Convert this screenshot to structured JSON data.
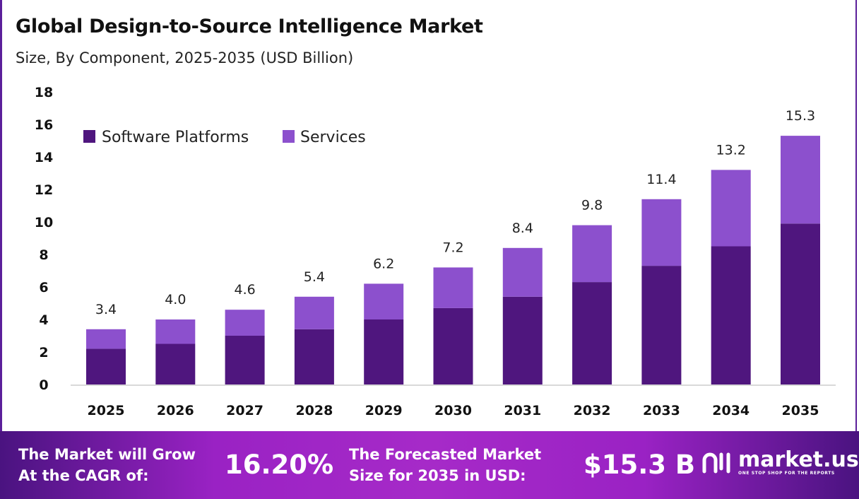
{
  "chart_data": {
    "type": "bar",
    "stacked": true,
    "title": "Global Design-to-Source Intelligence Market",
    "subtitle": "Size, By Component, 2025-2035 (USD Billion)",
    "categories": [
      "2025",
      "2026",
      "2027",
      "2028",
      "2029",
      "2030",
      "2031",
      "2032",
      "2033",
      "2034",
      "2035"
    ],
    "series": [
      {
        "name": "Software Platforms",
        "color": "#4f167e",
        "values": [
          2.2,
          2.5,
          3.0,
          3.4,
          4.0,
          4.7,
          5.4,
          6.3,
          7.3,
          8.5,
          9.9
        ]
      },
      {
        "name": "Services",
        "color": "#8c50cd",
        "values": [
          1.2,
          1.5,
          1.6,
          2.0,
          2.2,
          2.5,
          3.0,
          3.5,
          4.1,
          4.7,
          5.4
        ]
      }
    ],
    "totals": [
      "3.4",
      "4.0",
      "4.6",
      "5.4",
      "6.2",
      "7.2",
      "8.4",
      "9.8",
      "11.4",
      "13.2",
      "15.3"
    ],
    "yticks": [
      "0",
      "2",
      "4",
      "6",
      "8",
      "10",
      "12",
      "14",
      "16",
      "18"
    ],
    "ylim": [
      0,
      18
    ],
    "grid": false,
    "legend_position": "top-left"
  },
  "footer": {
    "cagr_label_line1": "The Market will Grow",
    "cagr_label_line2": "At the CAGR of:",
    "cagr_value": "16.20%",
    "forecast_label_line1": "The Forecasted Market",
    "forecast_label_line2": "Size for 2035 in USD:",
    "forecast_value": "$15.3 B",
    "logo_name": "market.us",
    "logo_tagline": "ONE STOP SHOP FOR THE REPORTS"
  }
}
